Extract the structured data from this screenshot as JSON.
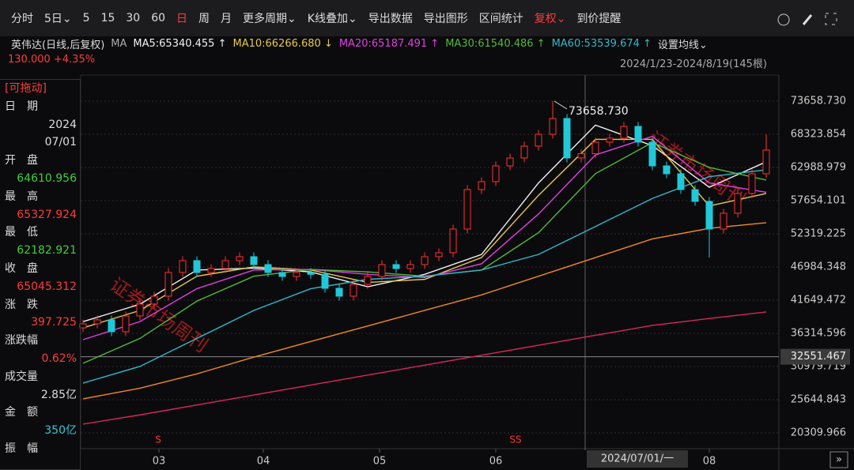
{
  "toolbar": [
    "分时",
    "5日⌄",
    "5",
    "15",
    "30",
    "60",
    "日",
    "周",
    "月",
    "更多周期⌄",
    "K线叠加⌄",
    "导出数据",
    "导出图形",
    "区间统计",
    "复权⌄",
    "到价提醒"
  ],
  "stock_label": "英伟达(日线,后复权)",
  "ma_label": "MA",
  "ma_settings": "设置均线⌄",
  "price_change": "130.000 +4.35%",
  "range": "2024/1/23-2024/8/19(145根)",
  "crosshair_date": "2024/07/01/一",
  "watermark": "证券市场周刊",
  "markers": [
    "S",
    "SS"
  ],
  "panel": {
    "drag": "[可拖动]",
    "rows": [
      [
        "日　期",
        ""
      ],
      [
        "",
        "2024"
      ],
      [
        "",
        "07/01"
      ],
      [
        "开　盘",
        "64610.956"
      ],
      [
        "最　高",
        "65327.924"
      ],
      [
        "最　低",
        "62182.921"
      ],
      [
        "收　盘",
        "65045.312"
      ],
      [
        "涨　跌",
        "397.725"
      ],
      [
        "涨跌幅",
        "0.62%"
      ],
      [
        "成交量",
        "2.85亿"
      ],
      [
        "金　额",
        "350亿"
      ],
      [
        "振　幅",
        ""
      ]
    ]
  },
  "chart_data": {
    "type": "candlestick",
    "xlim": [
      -1,
      147
    ],
    "ylim": [
      17770,
      77850
    ],
    "xticks": [
      {
        "value": 16,
        "label": "03"
      },
      {
        "value": 38,
        "label": "04"
      },
      {
        "value": 62.5,
        "label": "05"
      },
      {
        "value": 87,
        "label": "06"
      },
      {
        "value": 132,
        "label": "08"
      }
    ],
    "yticks": [
      {
        "value": 73658.73,
        "label": "73658.730"
      },
      68323.854,
      62988.979,
      57654.101,
      52319.225,
      46984.348,
      41649.472,
      36314.596,
      30979.719,
      25644.843,
      20309.966
    ],
    "grid": true,
    "last_price": 32551.467,
    "annotations": [
      {
        "text": "73658.730",
        "x": 99,
        "y": 73658.73
      }
    ],
    "candles": {
      "x": [
        0,
        3,
        6,
        9,
        12,
        15,
        18,
        21,
        24,
        27,
        30,
        33,
        36,
        39,
        42,
        45,
        48,
        51,
        54,
        57,
        60,
        63,
        66,
        69,
        72,
        75,
        78,
        81,
        84,
        87,
        90,
        93,
        96,
        99,
        102,
        105,
        108,
        111,
        114,
        117,
        120,
        123,
        126,
        129,
        132,
        135,
        138,
        141,
        144
      ],
      "open": [
        37200,
        37845,
        38480,
        36575,
        39115,
        41020,
        42290,
        46100,
        48005,
        46100,
        46735,
        48005,
        48640,
        47370,
        46100,
        45465,
        46100,
        45800,
        43560,
        42290,
        44195,
        45465,
        47370,
        46735,
        47370,
        48640,
        49275,
        53085,
        59435,
        60705,
        63245,
        64515,
        66420,
        68325,
        70865,
        64515,
        65200,
        67055,
        67690,
        69595,
        67055,
        63245,
        61975,
        59435,
        57530,
        53085,
        55625,
        58800,
        61975
      ],
      "high": [
        38545,
        39180,
        39180,
        39815,
        41720,
        42990,
        46800,
        48705,
        48705,
        47435,
        48705,
        49340,
        49340,
        48070,
        46800,
        46800,
        46800,
        46500,
        44260,
        44895,
        46165,
        48070,
        48070,
        48070,
        49340,
        49975,
        53785,
        60135,
        61405,
        63945,
        65215,
        67120,
        69025,
        73658.73,
        71565,
        65900,
        67755,
        68390,
        70295,
        70295,
        67755,
        63945,
        62675,
        60135,
        58230,
        56325,
        59500,
        62675,
        68300
      ],
      "low": [
        36500,
        37145,
        35875,
        35875,
        38415,
        40320,
        41590,
        45400,
        45400,
        45400,
        46035,
        47305,
        46670,
        45400,
        44765,
        44765,
        45100,
        42860,
        41590,
        41590,
        43495,
        44765,
        46035,
        46035,
        46670,
        47940,
        48575,
        52385,
        58735,
        60005,
        62545,
        63815,
        65720,
        67625,
        63815,
        63815,
        64500,
        66355,
        66990,
        66355,
        62545,
        61275,
        58735,
        56830,
        48500,
        52385,
        54925,
        58100,
        61275
      ],
      "close": [
        37845,
        38480,
        36575,
        39115,
        41020,
        42290,
        46100,
        48005,
        46100,
        46735,
        48005,
        48640,
        47370,
        46100,
        45465,
        46100,
        45800,
        43560,
        42290,
        44195,
        45465,
        47370,
        46735,
        47370,
        48640,
        49275,
        53085,
        59435,
        60705,
        63245,
        64515,
        66420,
        68325,
        70865,
        64515,
        65200,
        67055,
        67690,
        69595,
        67055,
        63245,
        61975,
        59435,
        57530,
        53085,
        55625,
        58800,
        61975,
        65785
      ],
      "up_color": "#ff3030",
      "down_color": "#20c8d8"
    },
    "ma_x": [
      0,
      12,
      24,
      36,
      48,
      60,
      72,
      84,
      96,
      108,
      120,
      132,
      144
    ],
    "series": [
      {
        "name": "MA5:65340.455 ↑",
        "color": "#f2f2f2",
        "values": [
          38200,
          41000,
          46500,
          46800,
          46200,
          43800,
          45800,
          49000,
          60500,
          69800,
          66500,
          59800,
          63900
        ]
      },
      {
        "name": "MA10:66266.680 ↓",
        "color": "#e8c84a",
        "values": [
          37200,
          40000,
          45500,
          47000,
          46500,
          44500,
          45000,
          48500,
          58500,
          67500,
          67500,
          56800,
          58800
        ]
      },
      {
        "name": "MA20:65187.491 ↑",
        "color": "#e040e0",
        "values": [
          35300,
          38200,
          43500,
          46500,
          46600,
          45800,
          45300,
          47500,
          55500,
          65000,
          68000,
          60500,
          59000
        ]
      },
      {
        "name": "MA30:61540.486 ↑",
        "color": "#55b83a",
        "values": [
          31500,
          35500,
          41500,
          45500,
          46600,
          46200,
          45500,
          46500,
          52500,
          62000,
          67000,
          63000,
          60960
        ]
      },
      {
        "name": "MA60:53539.674 ↑",
        "color": "#32b8c8",
        "values": [
          28320,
          31000,
          35500,
          40000,
          43500,
          45000,
          45500,
          46500,
          49000,
          53500,
          58000,
          61500,
          62610
        ]
      },
      {
        "color": "#f08a20",
        "values": [
          25780,
          27500,
          29800,
          32500,
          35000,
          37500,
          40000,
          42500,
          45500,
          48500,
          51500,
          53200,
          54100
        ]
      },
      {
        "color": "#d82858",
        "values": [
          21720,
          23200,
          24800,
          26400,
          28000,
          29600,
          31200,
          32800,
          34400,
          36000,
          37600,
          38700,
          39750
        ]
      }
    ]
  }
}
